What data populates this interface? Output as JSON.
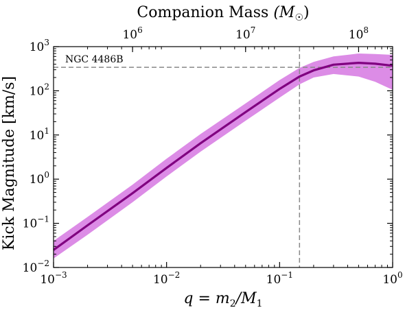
{
  "chart_data": {
    "type": "line",
    "title": "",
    "xlabel": "q = m₂/M₁",
    "ylabel": "Kick Magnitude [km/s]",
    "top_xlabel": "Companion Mass (M☉)",
    "xscale": "log",
    "yscale": "log",
    "xlim": [
      0.001,
      1
    ],
    "ylim": [
      0.01,
      1000
    ],
    "top_xlim": [
      200000,
      200000000
    ],
    "grid": false,
    "x_ticks": [
      {
        "value": 0.001,
        "base": "10",
        "exp": "−3"
      },
      {
        "value": 0.01,
        "base": "10",
        "exp": "−2"
      },
      {
        "value": 0.1,
        "base": "10",
        "exp": "−1"
      },
      {
        "value": 1,
        "base": "10",
        "exp": "0"
      }
    ],
    "y_ticks": [
      {
        "value": 0.01,
        "base": "10",
        "exp": "−2"
      },
      {
        "value": 0.1,
        "base": "10",
        "exp": "−1"
      },
      {
        "value": 1,
        "base": "10",
        "exp": "0"
      },
      {
        "value": 10,
        "base": "10",
        "exp": "1"
      },
      {
        "value": 100,
        "base": "10",
        "exp": "2"
      },
      {
        "value": 1000,
        "base": "10",
        "exp": "3"
      }
    ],
    "top_ticks": [
      {
        "value": 1000000,
        "base": "10",
        "exp": "6"
      },
      {
        "value": 10000000,
        "base": "10",
        "exp": "7"
      },
      {
        "value": 100000000,
        "base": "10",
        "exp": "8"
      }
    ],
    "series": [
      {
        "color": "#800080",
        "band_color": "#dc8ce6",
        "x": [
          0.001,
          0.002,
          0.005,
          0.01,
          0.02,
          0.05,
          0.1,
          0.15,
          0.2,
          0.3,
          0.5,
          0.7,
          1.0
        ],
        "y": [
          0.025,
          0.09,
          0.48,
          1.8,
          6.5,
          33,
          110,
          210,
          290,
          390,
          430,
          410,
          370
        ],
        "lower": [
          0.016,
          0.055,
          0.3,
          1.15,
          4.2,
          21,
          70,
          140,
          200,
          240,
          210,
          160,
          105
        ],
        "upper": [
          0.04,
          0.14,
          0.75,
          2.9,
          10.5,
          52,
          175,
          330,
          450,
          600,
          700,
          680,
          650
        ]
      }
    ],
    "reference_lines": [
      {
        "axis": "y",
        "value": 340,
        "label": "NGC 4486B",
        "color": "#888888"
      },
      {
        "axis": "x",
        "value": 0.15,
        "color": "#888888"
      }
    ]
  }
}
